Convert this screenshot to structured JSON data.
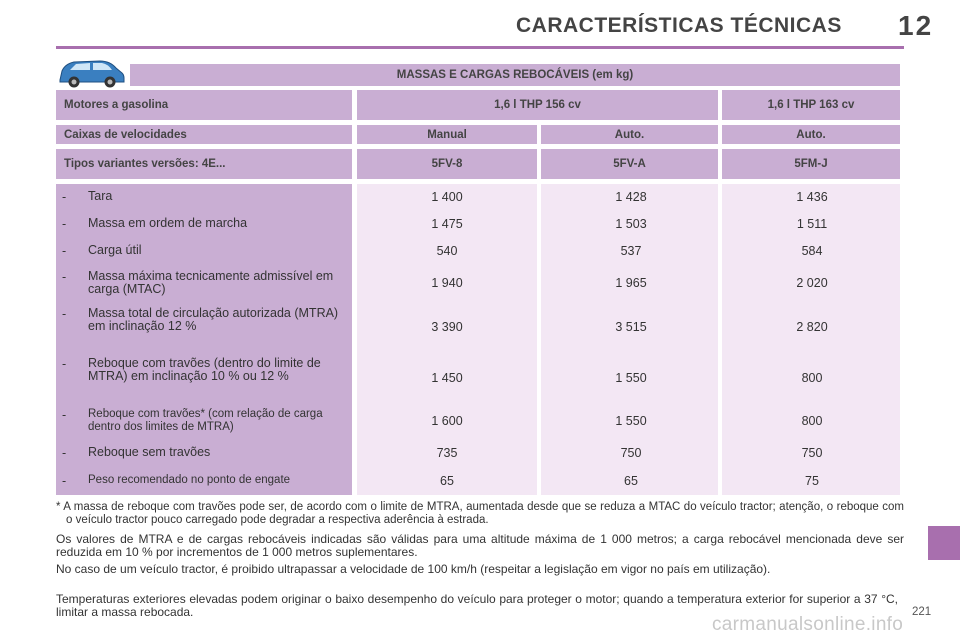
{
  "header": {
    "title": "CARACTERÍSTICAS TÉCNICAS",
    "chapter": "12"
  },
  "table": {
    "title": "MASSAS E CARGAS REBOCÁVEIS (em kg)",
    "engines_label": "Motores a gasolina",
    "engine_a": "1,6 l THP 156 cv",
    "engine_b": "1,6 l THP 163 cv",
    "gearbox_label": "Caixas de velocidades",
    "gearbox": [
      "Manual",
      "Auto.",
      "Auto."
    ],
    "variants_label": "Tipos variantes versões: 4E...",
    "variants": [
      "5FV-8",
      "5FV-A",
      "5FM-J"
    ],
    "rows": [
      {
        "dash": "-",
        "label": "Tara",
        "values": [
          "1 400",
          "1 428",
          "1 436"
        ]
      },
      {
        "dash": "-",
        "label": "Massa em ordem de marcha",
        "values": [
          "1 475",
          "1 503",
          "1 511"
        ]
      },
      {
        "dash": "-",
        "label": "Carga útil",
        "values": [
          "540",
          "537",
          "584"
        ]
      },
      {
        "dash": "-",
        "label": "Massa máxima tecnicamente admissível em carga (MTAC)",
        "values": [
          "1 940",
          "1 965",
          "2 020"
        ]
      },
      {
        "dash": "-",
        "label": "Massa total de circulação autorizada (MTRA) em inclinação 12 %",
        "values": [
          "3 390",
          "3 515",
          "2 820"
        ]
      },
      {
        "dash": "-",
        "label": "Reboque com travões (dentro do limite de MTRA) em inclinação 10 % ou 12 %",
        "values": [
          "1 450",
          "1 550",
          "800"
        ]
      },
      {
        "dash": "-",
        "label": "Reboque com travões* (com relação de carga dentro dos limites de MTRA)",
        "values": [
          "1 600",
          "1 550",
          "800"
        ]
      },
      {
        "dash": "-",
        "label": "Reboque sem travões",
        "values": [
          "735",
          "750",
          "750"
        ]
      },
      {
        "dash": "-",
        "label": "Peso recomendado no ponto de engate",
        "values": [
          "65",
          "65",
          "75"
        ]
      }
    ]
  },
  "footnotes": {
    "asterisk": "* A massa de reboque com travões pode ser, de acordo com o limite de MTRA, aumentada desde que se reduza a MTAC do veículo tractor; atenção, o reboque com o veículo tractor pouco carregado pode degradar a respectiva aderência à estrada.",
    "p1": "Os valores de MTRA e de cargas rebocáveis indicadas são válidas para uma altitude máxima de 1 000 metros; a carga rebocável mencionada deve ser reduzida em 10 % por incrementos de 1 000 metros suplementares.",
    "p2": "No caso de um veículo tractor, é proibido ultrapassar a velocidade de 100 km/h (respeitar a legislação em vigor no país em utilização).",
    "p3": "Temperaturas exteriores elevadas podem originar o baixo desempenho do veículo para proteger o motor; quando a tempe­ratura exterior for superior a 37 °C, limitar a massa rebocada."
  },
  "page_number": "221",
  "watermark": "carmanualsonline.info",
  "colors": {
    "accent": "#a86fae",
    "header_fill": "#c9aed3",
    "value_fill": "#f3e7f4"
  }
}
